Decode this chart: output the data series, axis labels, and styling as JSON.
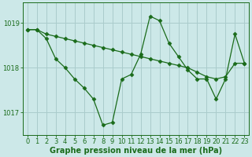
{
  "series1": {
    "x": [
      0,
      1,
      2,
      3,
      4,
      5,
      6,
      7,
      8,
      9,
      10,
      11,
      12,
      13,
      14,
      15,
      16,
      17,
      18,
      19,
      20,
      21,
      22,
      23
    ],
    "y": [
      1018.85,
      1018.85,
      1018.75,
      1018.7,
      1018.65,
      1018.6,
      1018.55,
      1018.5,
      1018.45,
      1018.4,
      1018.35,
      1018.3,
      1018.25,
      1018.2,
      1018.15,
      1018.1,
      1018.05,
      1018.0,
      1017.9,
      1017.8,
      1017.75,
      1017.8,
      1018.1,
      1018.1
    ],
    "color": "#1a6b1a",
    "linewidth": 0.9,
    "marker": "D",
    "markersize": 2.5
  },
  "series2": {
    "x": [
      0,
      1,
      2,
      3,
      4,
      5,
      6,
      7,
      8,
      9,
      10,
      11,
      12,
      13,
      14,
      15,
      16,
      17,
      18,
      19,
      20,
      21,
      22,
      23
    ],
    "y": [
      1018.85,
      1018.85,
      1018.65,
      1018.2,
      1018.0,
      1017.75,
      1017.55,
      1017.3,
      1016.72,
      1016.78,
      1017.75,
      1017.85,
      1018.3,
      1019.15,
      1019.05,
      1018.55,
      1018.25,
      1017.95,
      1017.75,
      1017.75,
      1017.3,
      1017.75,
      1018.75,
      1018.1
    ],
    "color": "#1a6b1a",
    "linewidth": 0.9,
    "marker": "D",
    "markersize": 2.5
  },
  "background_color": "#cce8e8",
  "grid_color": "#aacccc",
  "axis_color": "#1a6b1a",
  "text_color": "#1a6b1a",
  "xlabel": "Graphe pression niveau de la mer (hPa)",
  "xlabel_fontsize": 7,
  "tick_fontsize": 6,
  "ylim": [
    1016.5,
    1019.45
  ],
  "yticks": [
    1017,
    1018,
    1019
  ],
  "xlim": [
    -0.5,
    23.5
  ],
  "xticks": [
    0,
    1,
    2,
    3,
    4,
    5,
    6,
    7,
    8,
    9,
    10,
    11,
    12,
    13,
    14,
    15,
    16,
    17,
    18,
    19,
    20,
    21,
    22,
    23
  ]
}
